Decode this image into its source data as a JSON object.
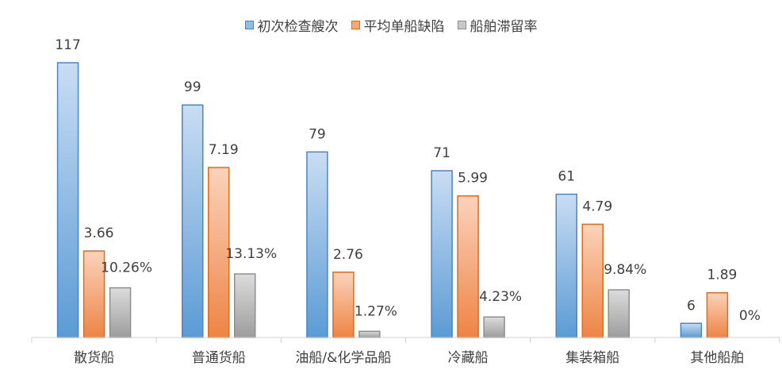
{
  "chart_data": {
    "type": "bar",
    "title": "",
    "xlabel": "",
    "ylabel": "",
    "categories": [
      "散货船",
      "普通货船",
      "油船/&化学品船",
      "冷藏船",
      "集装箱船",
      "其他船舶"
    ],
    "series": [
      {
        "name": "初次检查艘次",
        "values": [
          117,
          99,
          79,
          71,
          61,
          6
        ],
        "labels": [
          "117",
          "99",
          "79",
          "71",
          "61",
          "6"
        ],
        "color": "#5b9bd5"
      },
      {
        "name": "平均单船缺陷",
        "values": [
          3.66,
          7.19,
          2.76,
          5.99,
          4.79,
          1.89
        ],
        "labels": [
          "3.66",
          "7.19",
          "2.76",
          "5.99",
          "4.79",
          "1.89"
        ],
        "color": "#ed7d31"
      },
      {
        "name": "船舶滞留率",
        "values": [
          10.26,
          13.13,
          1.27,
          4.23,
          9.84,
          0
        ],
        "labels": [
          "10.26%",
          "13.13%",
          "1.27%",
          "4.23%",
          "9.84%",
          "0%"
        ],
        "color": "#a5a5a5"
      }
    ],
    "legend_position": "top",
    "grid": false
  }
}
